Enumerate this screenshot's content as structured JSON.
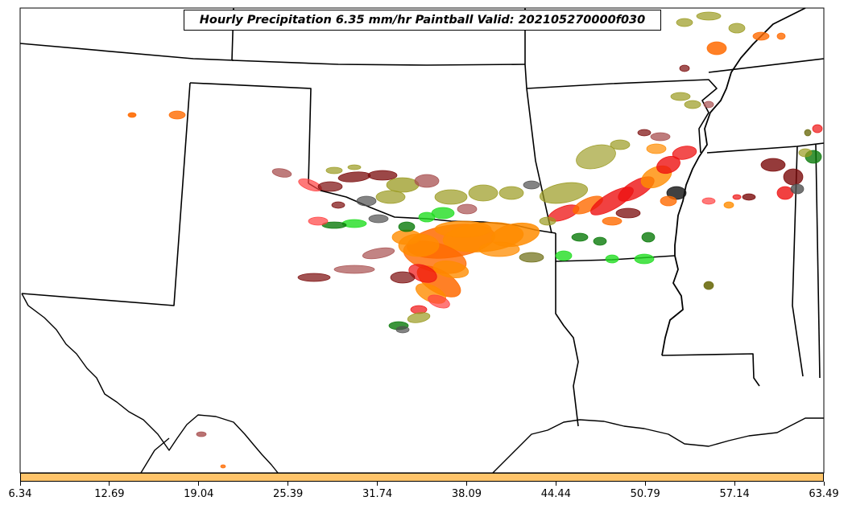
{
  "title": "Hourly Precipitation 6.35 mm/hr Paintball Valid: 202105270000f030",
  "colorbar": {
    "color": "#ffc46a",
    "ticks": [
      "6.34",
      "12.69",
      "19.04",
      "25.39",
      "31.74",
      "38.09",
      "44.44",
      "50.79",
      "57.14",
      "63.49"
    ]
  },
  "palette": {
    "orange": "#ff8c00",
    "dark_orange": "#ff6a00",
    "red": "#ee1111",
    "light_red": "#ff4040",
    "maroon": "#7a0a0a",
    "dusky_rose": "#a85050",
    "olive": "#9a9a20",
    "dark_olive": "#6b6b10",
    "green": "#22dd22",
    "dark_green": "#0a7a0a",
    "gray": "#505050",
    "black": "#111111"
  }
}
